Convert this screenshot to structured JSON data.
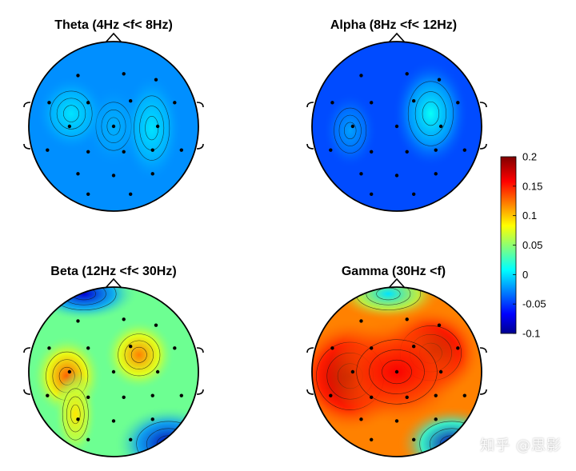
{
  "watermark": "知乎 @思影",
  "colormap": {
    "name": "jet",
    "stops": [
      "#00008f",
      "#0000ff",
      "#00ffff",
      "#ffff00",
      "#ff0000",
      "#800000"
    ]
  },
  "chart_data": [
    {
      "type": "topoplot",
      "title": "Theta (4Hz <f< 8Hz)",
      "clim": [
        -0.1,
        0.2
      ],
      "hotspots": [
        {
          "label": "Cz",
          "value": -0.015
        },
        {
          "label": "left-frontal",
          "value": 0.0
        },
        {
          "label": "right-central",
          "value": 0.0
        }
      ],
      "background_value": -0.025
    },
    {
      "type": "topoplot",
      "title": "Alpha (8Hz <f< 12Hz)",
      "clim": [
        -0.1,
        0.2
      ],
      "hotspots": [
        {
          "label": "right-frontocentral",
          "value": 0.01
        },
        {
          "label": "left-temporal",
          "value": -0.02
        }
      ],
      "background_value": -0.045
    },
    {
      "type": "topoplot",
      "title": "Beta (12Hz <f< 30Hz)",
      "clim": [
        -0.1,
        0.2
      ],
      "hotspots": [
        {
          "label": "left-temporal",
          "value": 0.13
        },
        {
          "label": "right-frontocentral",
          "value": 0.12
        },
        {
          "label": "left-parietal",
          "value": 0.09
        },
        {
          "label": "frontal-pole",
          "value": -0.08
        },
        {
          "label": "right-occipital",
          "value": -0.09
        }
      ],
      "background_value": 0.04
    },
    {
      "type": "topoplot",
      "title": "Gamma  (30Hz <f)",
      "clim": [
        -0.1,
        0.2
      ],
      "hotspots": [
        {
          "label": "left-temporal",
          "value": 0.19
        },
        {
          "label": "right-frontocentral",
          "value": 0.19
        },
        {
          "label": "central",
          "value": 0.16
        },
        {
          "label": "frontal-pole",
          "value": 0.0
        },
        {
          "label": "right-occipital",
          "value": -0.09
        }
      ],
      "background_value": 0.12
    }
  ],
  "colorbar": {
    "ticks": [
      "0.2",
      "0.15",
      "0.1",
      "0.05",
      "0",
      "-0.05",
      "-0.1"
    ],
    "range": [
      -0.1,
      0.2
    ]
  }
}
